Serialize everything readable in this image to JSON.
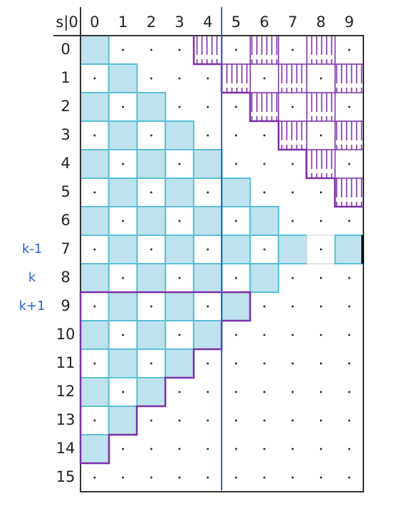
{
  "header": {
    "corner": "s|0",
    "columns": [
      "0",
      "1",
      "2",
      "3",
      "4",
      "5",
      "6",
      "7",
      "8",
      "9"
    ]
  },
  "rows": [
    "0",
    "1",
    "2",
    "3",
    "4",
    "5",
    "6",
    "7",
    "8",
    "9",
    "10",
    "11",
    "12",
    "13",
    "14",
    "15"
  ],
  "side_labels": [
    {
      "row": "7",
      "label": "k-1"
    },
    {
      "row": "8",
      "label": "k"
    },
    {
      "row": "9",
      "label": "k+1"
    }
  ]
}
